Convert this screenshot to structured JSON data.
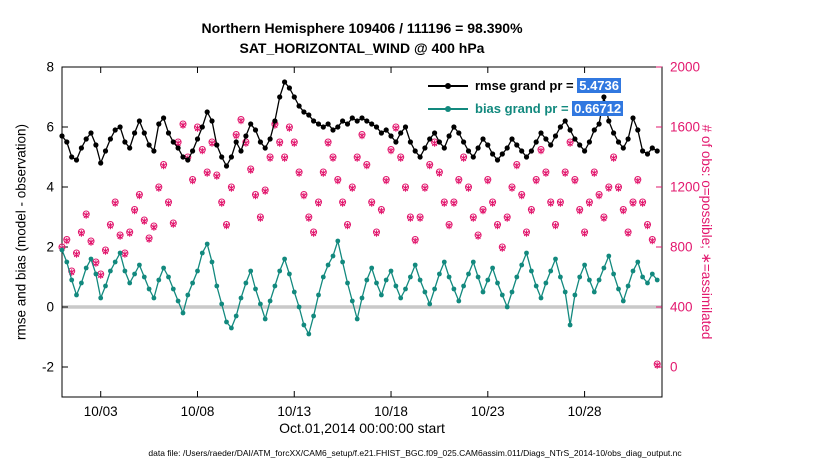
{
  "figure": {
    "title_line1": "Northern Hemisphere 109406 / 111196 = 98.390%",
    "title_line2": "SAT_HORIZONTAL_WIND @ 400 hPa",
    "xlabel": "Oct.01,2014 00:00:00 start",
    "ylabel_left": "rmse and bias (model - observation)",
    "ylabel_right": "# of obs: o=possible; ∗=assimilated",
    "footer": "data file: /Users/raeder/DAI/ATM_forcXX/CAM6_setup/f.e21.FHIST_BGC.f09_025.CAM6assim.011/Diags_NTrS_2014-10/obs_diag_output.nc",
    "legend": [
      {
        "prefix": "rmse grand pr = ",
        "value": "5.4736",
        "color": "#000000"
      },
      {
        "prefix": "bias grand pr = ",
        "value": "0.66712",
        "color": "#12897e"
      }
    ],
    "colors": {
      "rmse": "#000000",
      "bias": "#12897e",
      "obs": "#e2186e",
      "zero_line": "#c9c9c9",
      "highlight": "#3178e0"
    }
  },
  "chart_data": {
    "type": "line",
    "title": "Northern Hemisphere 109406 / 111196 = 98.390% | SAT_HORIZONTAL_WIND @ 400 hPa",
    "x_unit": "day of October 2014, 6-hourly bins",
    "x_start": 1,
    "x_step": 0.25,
    "xlim": [
      1,
      32
    ],
    "ylim_left": [
      -3,
      8
    ],
    "ylim_right": [
      -200,
      2000
    ],
    "xticks": {
      "values": [
        3,
        8,
        13,
        18,
        23,
        28
      ],
      "labels": [
        "10/03",
        "10/08",
        "10/13",
        "10/18",
        "10/23",
        "10/28"
      ]
    },
    "yticks_left": [
      -2,
      0,
      2,
      4,
      6,
      8
    ],
    "yticks_right": [
      0,
      400,
      800,
      1200,
      1600,
      2000
    ],
    "grand_rmse": 5.4736,
    "grand_bias": 0.66712,
    "obs_possible_total": 111196,
    "obs_assimilated_total": 109406,
    "series": [
      {
        "name": "rmse",
        "axis": "left",
        "marker": "o",
        "values": [
          5.7,
          5.5,
          5.0,
          4.9,
          5.3,
          5.6,
          5.8,
          5.4,
          4.8,
          5.2,
          5.6,
          5.9,
          6.0,
          5.5,
          5.3,
          5.8,
          6.2,
          5.8,
          5.4,
          5.2,
          6.1,
          6.3,
          5.8,
          5.5,
          5.3,
          5.0,
          4.9,
          5.2,
          5.6,
          6.0,
          6.5,
          6.2,
          5.4,
          5.0,
          4.7,
          5.0,
          5.5,
          5.2,
          5.7,
          6.1,
          5.9,
          5.5,
          5.3,
          5.6,
          6.2,
          7.0,
          7.5,
          7.3,
          7.0,
          6.7,
          6.5,
          6.4,
          6.2,
          6.1,
          6.0,
          6.1,
          5.9,
          6.0,
          6.2,
          6.1,
          6.3,
          6.2,
          6.3,
          6.2,
          6.1,
          6.0,
          5.8,
          5.9,
          5.7,
          5.5,
          5.8,
          6.0,
          5.5,
          5.2,
          5.0,
          5.3,
          5.6,
          5.8,
          5.5,
          5.3,
          5.7,
          6.0,
          5.8,
          5.5,
          5.2,
          5.0,
          5.3,
          5.6,
          5.4,
          5.1,
          4.9,
          5.1,
          5.3,
          5.6,
          5.4,
          5.2,
          5.0,
          5.2,
          5.5,
          5.8,
          5.6,
          5.4,
          5.7,
          6.0,
          6.2,
          5.9,
          5.6,
          5.4,
          5.2,
          5.5,
          5.9,
          6.1,
          7.0,
          6.2,
          5.8,
          5.5,
          5.3,
          5.6,
          6.3,
          5.9,
          5.2,
          5.1,
          5.3,
          5.2
        ]
      },
      {
        "name": "bias",
        "axis": "left",
        "marker": "o",
        "values": [
          1.9,
          1.5,
          0.9,
          0.4,
          0.8,
          1.3,
          1.6,
          1.1,
          0.3,
          0.7,
          1.2,
          1.5,
          1.8,
          1.2,
          0.8,
          1.1,
          1.4,
          1.0,
          0.6,
          0.3,
          0.9,
          1.3,
          1.0,
          0.6,
          0.2,
          -0.2,
          0.4,
          0.8,
          1.2,
          1.8,
          2.1,
          1.5,
          0.7,
          0.1,
          -0.5,
          -0.7,
          -0.3,
          0.3,
          0.8,
          1.2,
          0.6,
          0.1,
          -0.4,
          0.2,
          0.7,
          1.2,
          1.6,
          1.1,
          0.5,
          0.0,
          -0.6,
          -0.9,
          -0.3,
          0.4,
          1.0,
          1.4,
          1.7,
          2.2,
          1.5,
          0.8,
          0.2,
          -0.4,
          0.3,
          0.9,
          1.3,
          0.8,
          0.4,
          0.9,
          1.2,
          0.7,
          0.3,
          0.6,
          1.0,
          1.4,
          0.9,
          0.5,
          0.1,
          0.6,
          1.1,
          1.5,
          1.0,
          0.6,
          0.2,
          0.7,
          1.1,
          1.5,
          1.0,
          0.5,
          0.9,
          1.3,
          0.8,
          0.4,
          0.0,
          0.5,
          1.0,
          1.4,
          1.8,
          1.2,
          0.7,
          0.3,
          0.8,
          1.2,
          1.6,
          1.0,
          0.5,
          -0.6,
          0.4,
          1.0,
          1.4,
          0.9,
          0.5,
          0.9,
          1.3,
          1.7,
          1.1,
          0.6,
          0.2,
          0.7,
          1.2,
          1.5,
          1.0,
          0.8,
          1.1,
          0.9
        ]
      },
      {
        "name": "possible_obs",
        "axis": "right",
        "marker": "o",
        "values": [
          800,
          850,
          640,
          760,
          900,
          1020,
          840,
          700,
          620,
          780,
          950,
          1100,
          880,
          760,
          900,
          1050,
          1150,
          980,
          860,
          940,
          1200,
          1350,
          1100,
          960,
          1500,
          1620,
          1400,
          1250,
          1600,
          1450,
          1300,
          1500,
          1280,
          1100,
          950,
          1200,
          1550,
          1650,
          1500,
          1320,
          1150,
          1000,
          1180,
          1400,
          1620,
          1500,
          1400,
          1600,
          1500,
          1300,
          1150,
          1000,
          900,
          1100,
          1300,
          1500,
          1400,
          1250,
          1100,
          950,
          1200,
          1400,
          1550,
          1350,
          1100,
          900,
          1050,
          1250,
          1450,
          1600,
          1400,
          1200,
          1000,
          850,
          1000,
          1200,
          1350,
          1500,
          1300,
          1100,
          950,
          1100,
          1250,
          1400,
          1200,
          1000,
          880,
          1050,
          1250,
          1100,
          950,
          800,
          1000,
          1200,
          1350,
          1150,
          900,
          1050,
          1250,
          1450,
          1300,
          1100,
          950,
          1100,
          1300,
          1500,
          1250,
          1050,
          900,
          1100,
          1300,
          1150,
          1000,
          1200,
          1400,
          1200,
          1050,
          900,
          1100,
          1250,
          1100,
          950,
          850,
          20
        ]
      },
      {
        "name": "assimilated_obs",
        "axis": "right",
        "marker": "asterisk",
        "values": [
          790,
          840,
          630,
          750,
          890,
          1010,
          830,
          690,
          610,
          770,
          940,
          1090,
          870,
          750,
          890,
          1040,
          1140,
          970,
          850,
          930,
          1190,
          1340,
          1090,
          950,
          1490,
          1610,
          1390,
          1240,
          1590,
          1440,
          1290,
          1490,
          1270,
          1090,
          940,
          1190,
          1540,
          1640,
          1490,
          1310,
          1140,
          990,
          1170,
          1390,
          1610,
          1490,
          1390,
          1590,
          1490,
          1290,
          1140,
          990,
          890,
          1090,
          1290,
          1490,
          1390,
          1240,
          1090,
          940,
          1190,
          1390,
          1540,
          1340,
          1090,
          890,
          1040,
          1240,
          1440,
          1590,
          1390,
          1190,
          990,
          840,
          990,
          1190,
          1340,
          1490,
          1290,
          1090,
          940,
          1090,
          1240,
          1390,
          1190,
          990,
          870,
          1040,
          1240,
          1090,
          940,
          790,
          990,
          1190,
          1340,
          1140,
          890,
          1040,
          1240,
          1440,
          1290,
          1090,
          940,
          1090,
          1290,
          1490,
          1240,
          1040,
          890,
          1090,
          1290,
          1140,
          990,
          1190,
          1390,
          1190,
          1040,
          890,
          1090,
          1240,
          1090,
          940,
          840,
          10
        ]
      }
    ]
  }
}
